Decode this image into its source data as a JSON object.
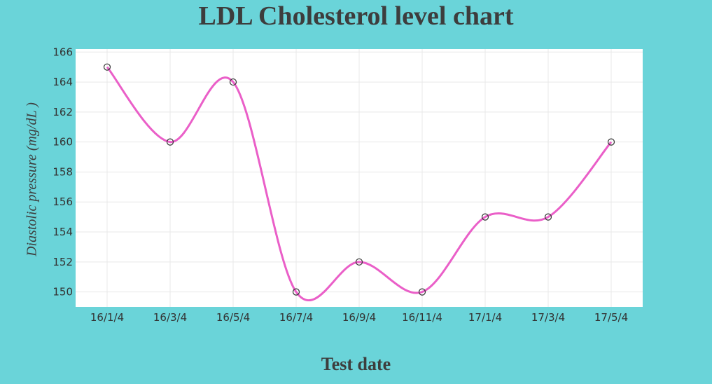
{
  "chart_data": {
    "type": "line",
    "title": "LDL Cholesterol level chart",
    "xlabel": "Test date",
    "ylabel": "Diastolic pressure  (mg/dL )",
    "categories": [
      "16/1/4",
      "16/3/4",
      "16/5/4",
      "16/7/4",
      "16/9/4",
      "16/11/4",
      "17/1/4",
      "17/3/4",
      "17/5/4"
    ],
    "values": [
      165,
      160,
      164,
      150,
      152,
      150,
      155,
      155,
      160
    ],
    "yticks": [
      150,
      152,
      154,
      156,
      158,
      160,
      162,
      164,
      166
    ],
    "ylim": [
      149,
      166.2
    ],
    "grid": true,
    "line_color": "#ea5fc8",
    "marker": "open-circle",
    "background_color": "#6ad4d9",
    "plot_background": "#ffffff"
  }
}
